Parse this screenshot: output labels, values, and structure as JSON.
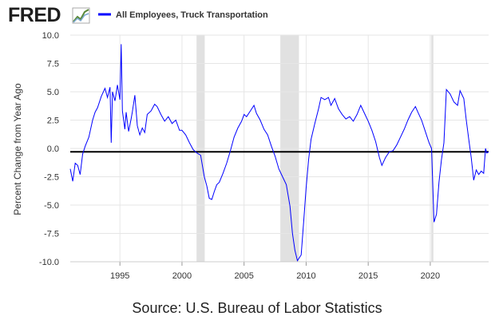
{
  "logo": {
    "text": "FRED",
    "icon": "chart-line-icon"
  },
  "source": "Source: U.S. Bureau of Labor Statistics",
  "colors": {
    "series": "#0000ff",
    "recession": "#e1e1e1",
    "gridline": "#e6e6e6",
    "zero_line": "#000000"
  },
  "chart_data": {
    "type": "line",
    "title": "",
    "ylabel": "Percent Change from Year Ago",
    "xlabel": "",
    "xlim": [
      1991.0,
      2024.7
    ],
    "ylim": [
      -10.0,
      10.0
    ],
    "yticks": [
      "10.0",
      "7.5",
      "5.0",
      "2.5",
      "0.0",
      "-2.5",
      "-5.0",
      "-7.5",
      "-10.0"
    ],
    "xticks": [
      "1995",
      "2000",
      "2005",
      "2010",
      "2015",
      "2020"
    ],
    "grid": true,
    "legend": "top-left",
    "recessions": [
      [
        2001.17,
        2001.83
      ],
      [
        2007.92,
        2009.42
      ],
      [
        2020.08,
        2020.25
      ]
    ],
    "series": [
      {
        "name": "All Employees, Truck Transportation",
        "color": "#0000ff",
        "points": [
          [
            1991.0,
            -1.8
          ],
          [
            1991.2,
            -2.9
          ],
          [
            1991.4,
            -1.3
          ],
          [
            1991.6,
            -1.5
          ],
          [
            1991.8,
            -2.3
          ],
          [
            1992.0,
            -0.5
          ],
          [
            1992.2,
            0.2
          ],
          [
            1992.5,
            1.0
          ],
          [
            1992.8,
            2.5
          ],
          [
            1993.0,
            3.2
          ],
          [
            1993.2,
            3.6
          ],
          [
            1993.5,
            4.6
          ],
          [
            1993.8,
            5.3
          ],
          [
            1994.0,
            4.5
          ],
          [
            1994.2,
            5.4
          ],
          [
            1994.3,
            0.5
          ],
          [
            1994.4,
            5.0
          ],
          [
            1994.6,
            4.2
          ],
          [
            1994.8,
            5.6
          ],
          [
            1995.0,
            4.3
          ],
          [
            1995.1,
            9.2
          ],
          [
            1995.2,
            3.3
          ],
          [
            1995.4,
            1.7
          ],
          [
            1995.5,
            3.2
          ],
          [
            1995.7,
            1.5
          ],
          [
            1995.9,
            2.6
          ],
          [
            1996.0,
            3.2
          ],
          [
            1996.2,
            4.7
          ],
          [
            1996.4,
            2.0
          ],
          [
            1996.6,
            1.2
          ],
          [
            1996.8,
            1.8
          ],
          [
            1997.0,
            1.4
          ],
          [
            1997.2,
            3.0
          ],
          [
            1997.5,
            3.3
          ],
          [
            1997.8,
            3.9
          ],
          [
            1998.0,
            3.7
          ],
          [
            1998.3,
            3.0
          ],
          [
            1998.6,
            2.4
          ],
          [
            1998.9,
            2.8
          ],
          [
            1999.2,
            2.2
          ],
          [
            1999.5,
            2.5
          ],
          [
            1999.8,
            1.6
          ],
          [
            2000.0,
            1.6
          ],
          [
            2000.3,
            1.2
          ],
          [
            2000.6,
            0.5
          ],
          [
            2000.9,
            -0.1
          ],
          [
            2001.2,
            -0.4
          ],
          [
            2001.5,
            -0.6
          ],
          [
            2001.8,
            -2.5
          ],
          [
            2002.0,
            -3.3
          ],
          [
            2002.2,
            -4.4
          ],
          [
            2002.4,
            -4.5
          ],
          [
            2002.6,
            -3.8
          ],
          [
            2002.8,
            -3.2
          ],
          [
            2003.0,
            -3.0
          ],
          [
            2003.3,
            -2.2
          ],
          [
            2003.6,
            -1.3
          ],
          [
            2003.9,
            -0.2
          ],
          [
            2004.2,
            1.0
          ],
          [
            2004.5,
            1.8
          ],
          [
            2004.8,
            2.4
          ],
          [
            2005.0,
            3.0
          ],
          [
            2005.2,
            2.8
          ],
          [
            2005.5,
            3.3
          ],
          [
            2005.8,
            3.8
          ],
          [
            2006.0,
            3.1
          ],
          [
            2006.3,
            2.5
          ],
          [
            2006.6,
            1.7
          ],
          [
            2006.9,
            1.2
          ],
          [
            2007.2,
            0.2
          ],
          [
            2007.5,
            -0.7
          ],
          [
            2007.8,
            -1.8
          ],
          [
            2008.1,
            -2.5
          ],
          [
            2008.4,
            -3.2
          ],
          [
            2008.7,
            -5.1
          ],
          [
            2008.9,
            -7.5
          ],
          [
            2009.1,
            -9.0
          ],
          [
            2009.3,
            -9.9
          ],
          [
            2009.6,
            -9.4
          ],
          [
            2009.8,
            -6.5
          ],
          [
            2010.0,
            -3.5
          ],
          [
            2010.2,
            -1.0
          ],
          [
            2010.4,
            0.8
          ],
          [
            2010.7,
            2.2
          ],
          [
            2011.0,
            3.5
          ],
          [
            2011.2,
            4.5
          ],
          [
            2011.5,
            4.3
          ],
          [
            2011.8,
            4.5
          ],
          [
            2012.0,
            3.8
          ],
          [
            2012.3,
            4.4
          ],
          [
            2012.6,
            3.5
          ],
          [
            2012.9,
            3.0
          ],
          [
            2013.2,
            2.6
          ],
          [
            2013.5,
            2.8
          ],
          [
            2013.8,
            2.4
          ],
          [
            2014.1,
            3.0
          ],
          [
            2014.4,
            3.8
          ],
          [
            2014.7,
            3.1
          ],
          [
            2015.0,
            2.4
          ],
          [
            2015.3,
            1.6
          ],
          [
            2015.6,
            0.6
          ],
          [
            2015.9,
            -0.8
          ],
          [
            2016.1,
            -1.5
          ],
          [
            2016.4,
            -0.8
          ],
          [
            2016.7,
            -0.3
          ],
          [
            2017.0,
            -0.2
          ],
          [
            2017.3,
            0.3
          ],
          [
            2017.6,
            1.0
          ],
          [
            2017.9,
            1.7
          ],
          [
            2018.2,
            2.5
          ],
          [
            2018.5,
            3.2
          ],
          [
            2018.8,
            3.7
          ],
          [
            2019.0,
            3.2
          ],
          [
            2019.3,
            2.5
          ],
          [
            2019.6,
            1.5
          ],
          [
            2019.9,
            0.5
          ],
          [
            2020.1,
            0.0
          ],
          [
            2020.3,
            -6.5
          ],
          [
            2020.5,
            -5.8
          ],
          [
            2020.7,
            -3.0
          ],
          [
            2020.9,
            -1.0
          ],
          [
            2021.1,
            0.5
          ],
          [
            2021.3,
            5.2
          ],
          [
            2021.6,
            4.8
          ],
          [
            2021.9,
            4.1
          ],
          [
            2022.2,
            3.8
          ],
          [
            2022.4,
            5.1
          ],
          [
            2022.7,
            4.4
          ],
          [
            2022.9,
            2.5
          ],
          [
            2023.1,
            0.8
          ],
          [
            2023.3,
            -0.8
          ],
          [
            2023.5,
            -2.8
          ],
          [
            2023.7,
            -1.9
          ],
          [
            2023.9,
            -2.3
          ],
          [
            2024.1,
            -2.0
          ],
          [
            2024.3,
            -2.2
          ],
          [
            2024.45,
            0.0
          ],
          [
            2024.55,
            -0.4
          ],
          [
            2024.7,
            -0.3
          ]
        ]
      }
    ]
  }
}
